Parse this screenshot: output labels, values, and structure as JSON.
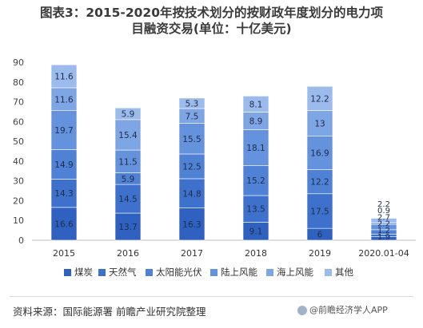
{
  "title_line1": "图表3：2015-2020年按技术划分的按财政年度划分的电力项",
  "title_line2": "目融资交易(单位：十亿美元)",
  "source": "资料来源：国际能源署 前瞻产业研究院整理",
  "watermark": "@前瞻经济学人APP",
  "chart_data": {
    "type": "bar",
    "stacked": true,
    "categories": [
      "2015",
      "2016",
      "2017",
      "2018",
      "2019",
      "2020.01-04"
    ],
    "ylim": [
      0,
      90
    ],
    "yticks": [
      0,
      10,
      20,
      30,
      40,
      50,
      60,
      70,
      80,
      90
    ],
    "grid": false,
    "legend_position": "bottom",
    "series": [
      {
        "name": "煤炭",
        "color": "#2f62c0",
        "values": [
          16.6,
          13.7,
          16.3,
          9.1,
          6,
          1.9
        ]
      },
      {
        "name": "天然气",
        "color": "#3d71cb",
        "values": [
          14.3,
          14.5,
          14.8,
          13.5,
          17.5,
          1.2
        ]
      },
      {
        "name": "太阳能光伏",
        "color": "#4f81d4",
        "values": [
          14.9,
          5.9,
          12.5,
          15.2,
          12.2,
          2.2
        ]
      },
      {
        "name": "陆上风能",
        "color": "#6592dc",
        "values": [
          19.7,
          11.5,
          15.5,
          18.1,
          16.9,
          2.7
        ]
      },
      {
        "name": "海上风能",
        "color": "#7ea5e4",
        "values": [
          11.6,
          15.4,
          7.5,
          8.9,
          13,
          0.9
        ]
      },
      {
        "name": "其他",
        "color": "#9bbbec",
        "values": [
          11.6,
          5.9,
          5.3,
          8.1,
          12.2,
          2.2
        ]
      }
    ]
  }
}
